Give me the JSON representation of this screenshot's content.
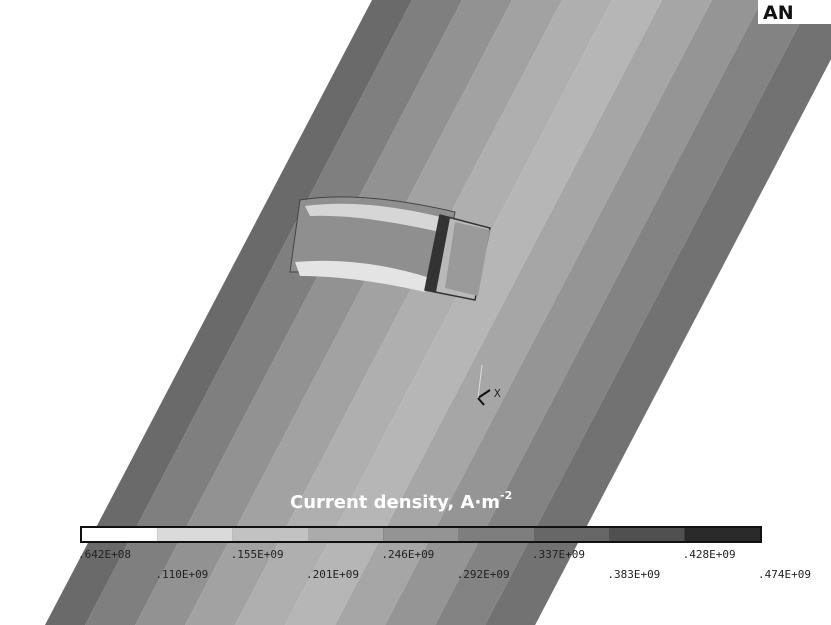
{
  "logo": "AN",
  "legend": {
    "title": "Current density, A·m",
    "title_superscript": "-2",
    "labels": [
      ".642E+08",
      ".110E+09",
      ".155E+09",
      ".201E+09",
      ".246E+09",
      ".292E+09",
      ".337E+09",
      ".383E+09",
      ".428E+09",
      ".474E+09"
    ]
  },
  "triad": {
    "x_label": "X"
  }
}
